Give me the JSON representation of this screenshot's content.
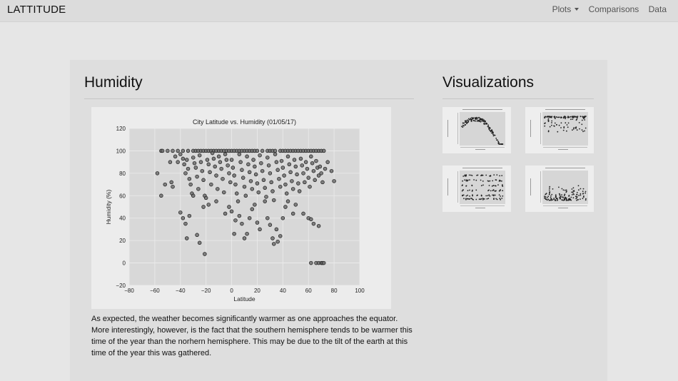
{
  "navbar": {
    "brand": "LATTITUDE",
    "items": [
      {
        "label": "Plots",
        "dropdown": true
      },
      {
        "label": "Comparisons"
      },
      {
        "label": "Data"
      }
    ]
  },
  "main": {
    "heading": "Humidity",
    "description": "As expected, the weather becomes significantly warmer as one approaches the equator. More interestingly, however, is the fact that the southern hemisphere tends to be warmer this time of the year than the norhern hemisphere. This may be due to the tilt of the earth at this time of the year this was gathered."
  },
  "sidebar": {
    "heading": "Visualizations",
    "thumbnails": [
      {
        "name": "max-temperature",
        "type": "arch"
      },
      {
        "name": "humidity",
        "type": "band-top"
      },
      {
        "name": "cloudiness",
        "type": "rows"
      },
      {
        "name": "wind-speed",
        "type": "band-bottom"
      }
    ]
  },
  "colors": {
    "navbar_bg": "#dcdcdc",
    "page_bg": "#e6e6e6",
    "card_bg": "#dedede",
    "plot_bg": "#d8d8d8",
    "marker_fill": "#707070",
    "marker_stroke": "#1a1a1a"
  },
  "chart_data": {
    "type": "scatter",
    "title": "City Latitude vs. Humidity (01/05/17)",
    "xlabel": "Latitude",
    "ylabel": "Humidity (%)",
    "xlim": [
      -80,
      100
    ],
    "ylim": [
      -20,
      120
    ],
    "xticks": [
      -80,
      -60,
      -40,
      -20,
      0,
      20,
      40,
      60,
      80,
      100
    ],
    "yticks": [
      -20,
      0,
      20,
      40,
      60,
      80,
      100,
      120
    ],
    "grid": true,
    "points": [
      [
        -55,
        100
      ],
      [
        -54,
        100
      ],
      [
        -50,
        100
      ],
      [
        -46,
        100
      ],
      [
        -42,
        100
      ],
      [
        -38,
        100
      ],
      [
        -34,
        100
      ],
      [
        -30,
        100
      ],
      [
        -28,
        100
      ],
      [
        -26,
        100
      ],
      [
        -24,
        100
      ],
      [
        -22,
        100
      ],
      [
        -20,
        100
      ],
      [
        -18,
        100
      ],
      [
        -16,
        100
      ],
      [
        -14,
        100
      ],
      [
        -12,
        100
      ],
      [
        -10,
        100
      ],
      [
        -8,
        100
      ],
      [
        -6,
        100
      ],
      [
        -4,
        100
      ],
      [
        -2,
        100
      ],
      [
        0,
        100
      ],
      [
        2,
        100
      ],
      [
        4,
        100
      ],
      [
        6,
        100
      ],
      [
        8,
        100
      ],
      [
        10,
        100
      ],
      [
        12,
        100
      ],
      [
        14,
        100
      ],
      [
        16,
        100
      ],
      [
        18,
        100
      ],
      [
        20,
        100
      ],
      [
        24,
        100
      ],
      [
        28,
        100
      ],
      [
        30,
        100
      ],
      [
        32,
        100
      ],
      [
        34,
        100
      ],
      [
        38,
        100
      ],
      [
        40,
        100
      ],
      [
        42,
        100
      ],
      [
        44,
        100
      ],
      [
        46,
        100
      ],
      [
        48,
        100
      ],
      [
        50,
        100
      ],
      [
        52,
        100
      ],
      [
        54,
        100
      ],
      [
        56,
        100
      ],
      [
        58,
        100
      ],
      [
        60,
        100
      ],
      [
        62,
        100
      ],
      [
        64,
        100
      ],
      [
        66,
        100
      ],
      [
        68,
        100
      ],
      [
        70,
        100
      ],
      [
        72,
        100
      ],
      [
        -58,
        80
      ],
      [
        -55,
        60
      ],
      [
        -52,
        70
      ],
      [
        -48,
        90
      ],
      [
        -47,
        72
      ],
      [
        -46,
        68
      ],
      [
        -44,
        95
      ],
      [
        -42,
        90
      ],
      [
        -40,
        97
      ],
      [
        -38,
        93
      ],
      [
        -37,
        88
      ],
      [
        -36,
        80
      ],
      [
        -35,
        92
      ],
      [
        -34,
        84
      ],
      [
        -33,
        75
      ],
      [
        -32,
        70
      ],
      [
        -31,
        62
      ],
      [
        -30,
        94
      ],
      [
        -29,
        89
      ],
      [
        -28,
        85
      ],
      [
        -27,
        77
      ],
      [
        -26,
        66
      ],
      [
        -25,
        96
      ],
      [
        -24,
        90
      ],
      [
        -23,
        82
      ],
      [
        -22,
        74
      ],
      [
        -21,
        60
      ],
      [
        -20,
        58
      ],
      [
        -19,
        92
      ],
      [
        -18,
        88
      ],
      [
        -17,
        81
      ],
      [
        -16,
        70
      ],
      [
        -15,
        98
      ],
      [
        -14,
        93
      ],
      [
        -13,
        86
      ],
      [
        -12,
        78
      ],
      [
        -11,
        66
      ],
      [
        -10,
        95
      ],
      [
        -9,
        90
      ],
      [
        -8,
        84
      ],
      [
        -7,
        75
      ],
      [
        -6,
        63
      ],
      [
        -5,
        97
      ],
      [
        -4,
        92
      ],
      [
        -3,
        87
      ],
      [
        -2,
        80
      ],
      [
        -1,
        72
      ],
      [
        0,
        92
      ],
      [
        1,
        85
      ],
      [
        2,
        78
      ],
      [
        3,
        70
      ],
      [
        4,
        62
      ],
      [
        5,
        55
      ],
      [
        6,
        97
      ],
      [
        7,
        90
      ],
      [
        8,
        83
      ],
      [
        9,
        76
      ],
      [
        10,
        68
      ],
      [
        11,
        60
      ],
      [
        12,
        95
      ],
      [
        13,
        88
      ],
      [
        14,
        81
      ],
      [
        15,
        73
      ],
      [
        16,
        66
      ],
      [
        17,
        92
      ],
      [
        18,
        86
      ],
      [
        19,
        79
      ],
      [
        20,
        71
      ],
      [
        21,
        63
      ],
      [
        22,
        96
      ],
      [
        23,
        89
      ],
      [
        24,
        82
      ],
      [
        25,
        74
      ],
      [
        26,
        67
      ],
      [
        27,
        59
      ],
      [
        28,
        94
      ],
      [
        29,
        87
      ],
      [
        30,
        80
      ],
      [
        31,
        72
      ],
      [
        32,
        64
      ],
      [
        33,
        56
      ],
      [
        34,
        97
      ],
      [
        35,
        90
      ],
      [
        36,
        83
      ],
      [
        37,
        75
      ],
      [
        38,
        68
      ],
      [
        39,
        91
      ],
      [
        40,
        85
      ],
      [
        41,
        78
      ],
      [
        42,
        70
      ],
      [
        43,
        62
      ],
      [
        44,
        95
      ],
      [
        45,
        88
      ],
      [
        46,
        81
      ],
      [
        47,
        73
      ],
      [
        48,
        66
      ],
      [
        49,
        92
      ],
      [
        50,
        86
      ],
      [
        51,
        79
      ],
      [
        52,
        71
      ],
      [
        53,
        64
      ],
      [
        54,
        93
      ],
      [
        55,
        87
      ],
      [
        56,
        80
      ],
      [
        57,
        72
      ],
      [
        58,
        90
      ],
      [
        59,
        84
      ],
      [
        60,
        76
      ],
      [
        61,
        68
      ],
      [
        62,
        95
      ],
      [
        63,
        89
      ],
      [
        64,
        82
      ],
      [
        65,
        74
      ],
      [
        66,
        91
      ],
      [
        67,
        85
      ],
      [
        68,
        78
      ],
      [
        69,
        86
      ],
      [
        70,
        80
      ],
      [
        71,
        72
      ],
      [
        73,
        84
      ],
      [
        75,
        90
      ],
      [
        78,
        82
      ],
      [
        80,
        73
      ],
      [
        -40,
        45
      ],
      [
        -38,
        40
      ],
      [
        -36,
        35
      ],
      [
        -35,
        22
      ],
      [
        -33,
        42
      ],
      [
        -30,
        60
      ],
      [
        -27,
        25
      ],
      [
        -25,
        18
      ],
      [
        -22,
        50
      ],
      [
        -21,
        8
      ],
      [
        -18,
        52
      ],
      [
        -12,
        55
      ],
      [
        -5,
        44
      ],
      [
        -2,
        50
      ],
      [
        0,
        46
      ],
      [
        2,
        26
      ],
      [
        3,
        38
      ],
      [
        6,
        42
      ],
      [
        8,
        35
      ],
      [
        10,
        22
      ],
      [
        12,
        26
      ],
      [
        14,
        40
      ],
      [
        16,
        48
      ],
      [
        18,
        52
      ],
      [
        20,
        36
      ],
      [
        22,
        30
      ],
      [
        26,
        55
      ],
      [
        28,
        40
      ],
      [
        30,
        34
      ],
      [
        32,
        22
      ],
      [
        33,
        17
      ],
      [
        35,
        30
      ],
      [
        36,
        19
      ],
      [
        38,
        24
      ],
      [
        40,
        40
      ],
      [
        42,
        50
      ],
      [
        44,
        55
      ],
      [
        48,
        44
      ],
      [
        50,
        52
      ],
      [
        56,
        44
      ],
      [
        60,
        40
      ],
      [
        62,
        39
      ],
      [
        64,
        35
      ],
      [
        68,
        33
      ],
      [
        62,
        0
      ],
      [
        66,
        0
      ],
      [
        68,
        0
      ],
      [
        70,
        0
      ],
      [
        71,
        0
      ],
      [
        72,
        0
      ]
    ]
  }
}
